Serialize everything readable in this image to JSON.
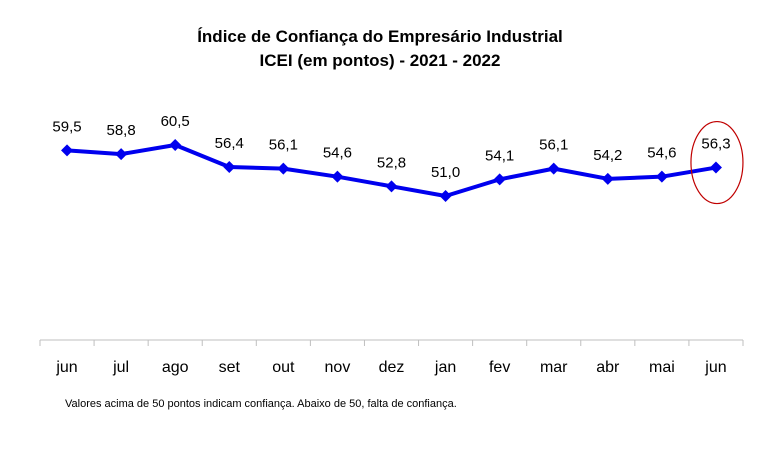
{
  "chart_data": {
    "type": "line",
    "title": "Índice de Confiança do Empresário Industrial",
    "subtitle": "ICEI (em pontos) - 2021 - 2022",
    "categories": [
      "jun",
      "jul",
      "ago",
      "set",
      "out",
      "nov",
      "dez",
      "jan",
      "fev",
      "mar",
      "abr",
      "mai",
      "jun"
    ],
    "data_labels": [
      "59,5",
      "58,8",
      "60,5",
      "56,4",
      "56,1",
      "54,6",
      "52,8",
      "51,0",
      "54,1",
      "56,1",
      "54,2",
      "54,6",
      "56,3"
    ],
    "series": [
      {
        "values": [
          59.5,
          58.8,
          60.5,
          56.4,
          56.1,
          54.6,
          52.8,
          51.0,
          54.1,
          56.1,
          54.2,
          54.6,
          56.3
        ]
      }
    ],
    "highlighted_point": "jun",
    "legend": "none",
    "grid": false,
    "colors": {
      "line": "#0000ee",
      "highlight_circle": "#c00000"
    }
  },
  "footnote": "Valores acima de 50 pontos indicam confiança. Abaixo de 50, falta de confiança."
}
